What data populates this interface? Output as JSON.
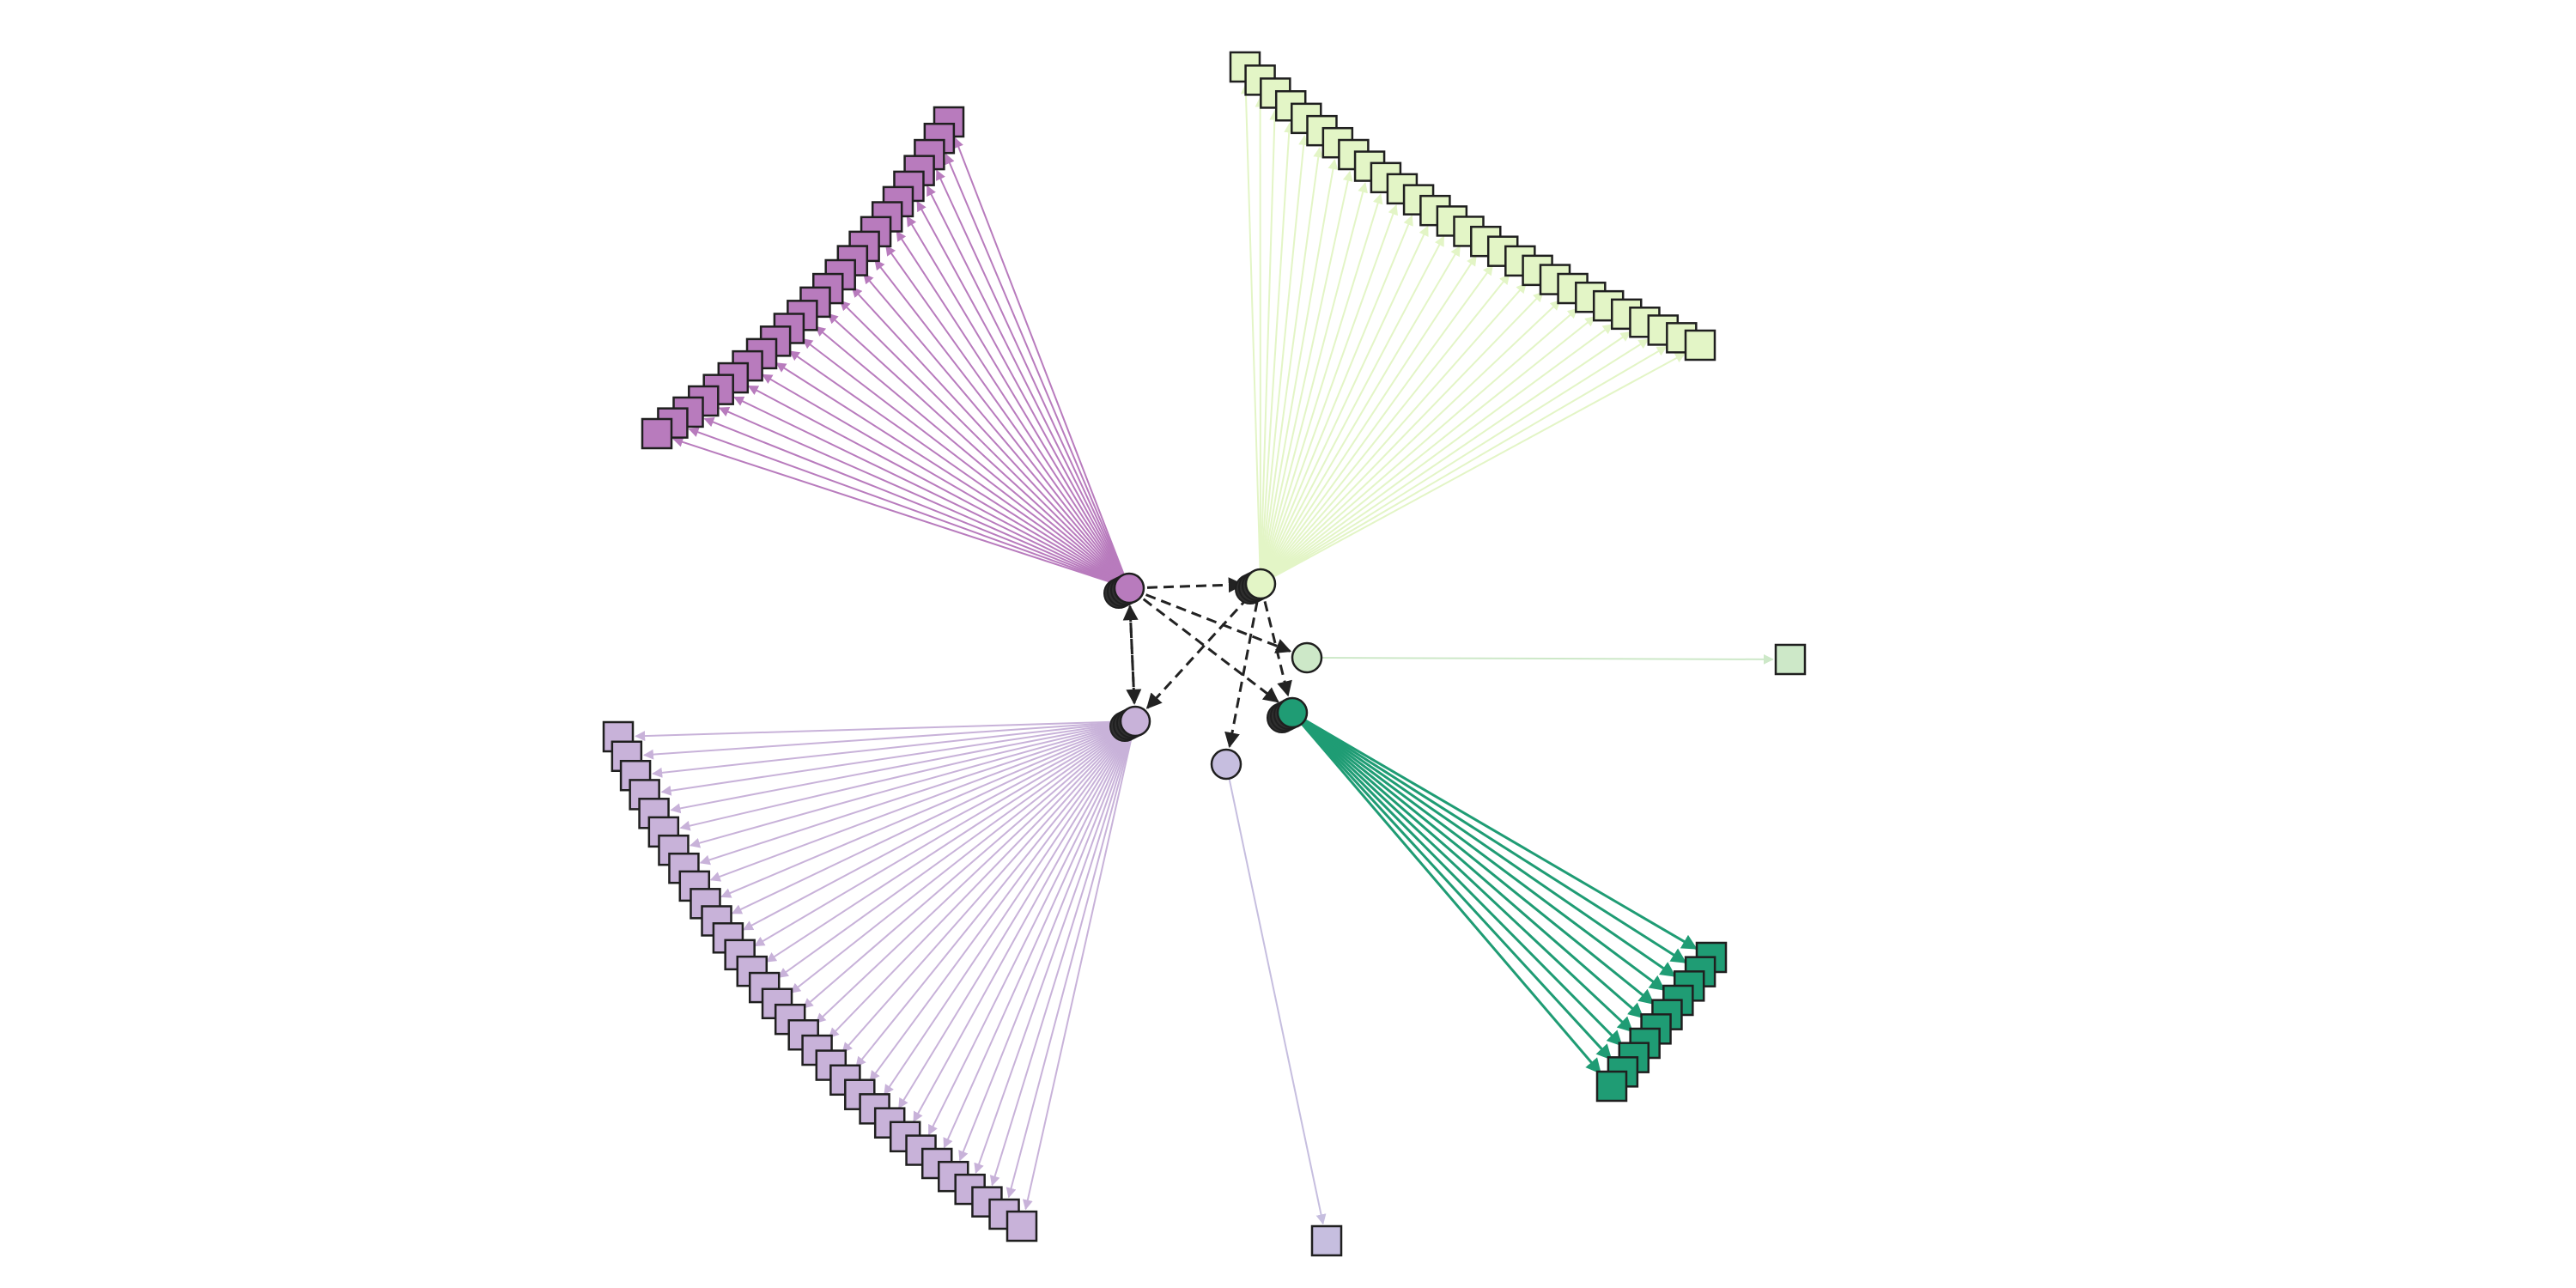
{
  "colors": {
    "background": "#ffffff",
    "outline": "#1f1f1f",
    "hub_shadow": "#2f2f2f",
    "dependency_edge": "#222222",
    "purple": "#b87bbd",
    "light_green": "#e3f5c6",
    "lavender": "#c8b2d9",
    "teal": "#1f9c74",
    "mint": "#cde8c8",
    "periwinkle": "#c6bedf"
  },
  "edge_style": {
    "dependency": "dashed"
  },
  "clusters": [
    {
      "id": "purple",
      "color_key": "purple",
      "hub_shape": "circle",
      "leaf_shape": "square",
      "leaf_count": 24,
      "stacked_hub": true
    },
    {
      "id": "light-green",
      "color_key": "light_green",
      "hub_shape": "circle",
      "leaf_shape": "square",
      "leaf_count": 28,
      "stacked_hub": true
    },
    {
      "id": "lavender",
      "color_key": "lavender",
      "hub_shape": "circle",
      "leaf_shape": "square",
      "leaf_count": 32,
      "stacked_hub": true
    },
    {
      "id": "teal",
      "color_key": "teal",
      "hub_shape": "circle",
      "leaf_shape": "square",
      "leaf_count": 10,
      "stacked_hub": true
    },
    {
      "id": "mint",
      "color_key": "mint",
      "hub_shape": "circle",
      "leaf_shape": "square",
      "leaf_count": 1,
      "stacked_hub": false
    },
    {
      "id": "periwinkle",
      "color_key": "periwinkle",
      "hub_shape": "circle",
      "leaf_shape": "square",
      "leaf_count": 1,
      "stacked_hub": false
    }
  ],
  "dependency_edges": [
    {
      "from": "purple",
      "to": "light-green"
    },
    {
      "from": "purple",
      "to": "lavender"
    },
    {
      "from": "purple",
      "to": "mint"
    },
    {
      "from": "purple",
      "to": "teal"
    },
    {
      "from": "light-green",
      "to": "lavender"
    },
    {
      "from": "light-green",
      "to": "teal"
    },
    {
      "from": "light-green",
      "to": "periwinkle"
    },
    {
      "from": "lavender",
      "to": "purple"
    }
  ]
}
